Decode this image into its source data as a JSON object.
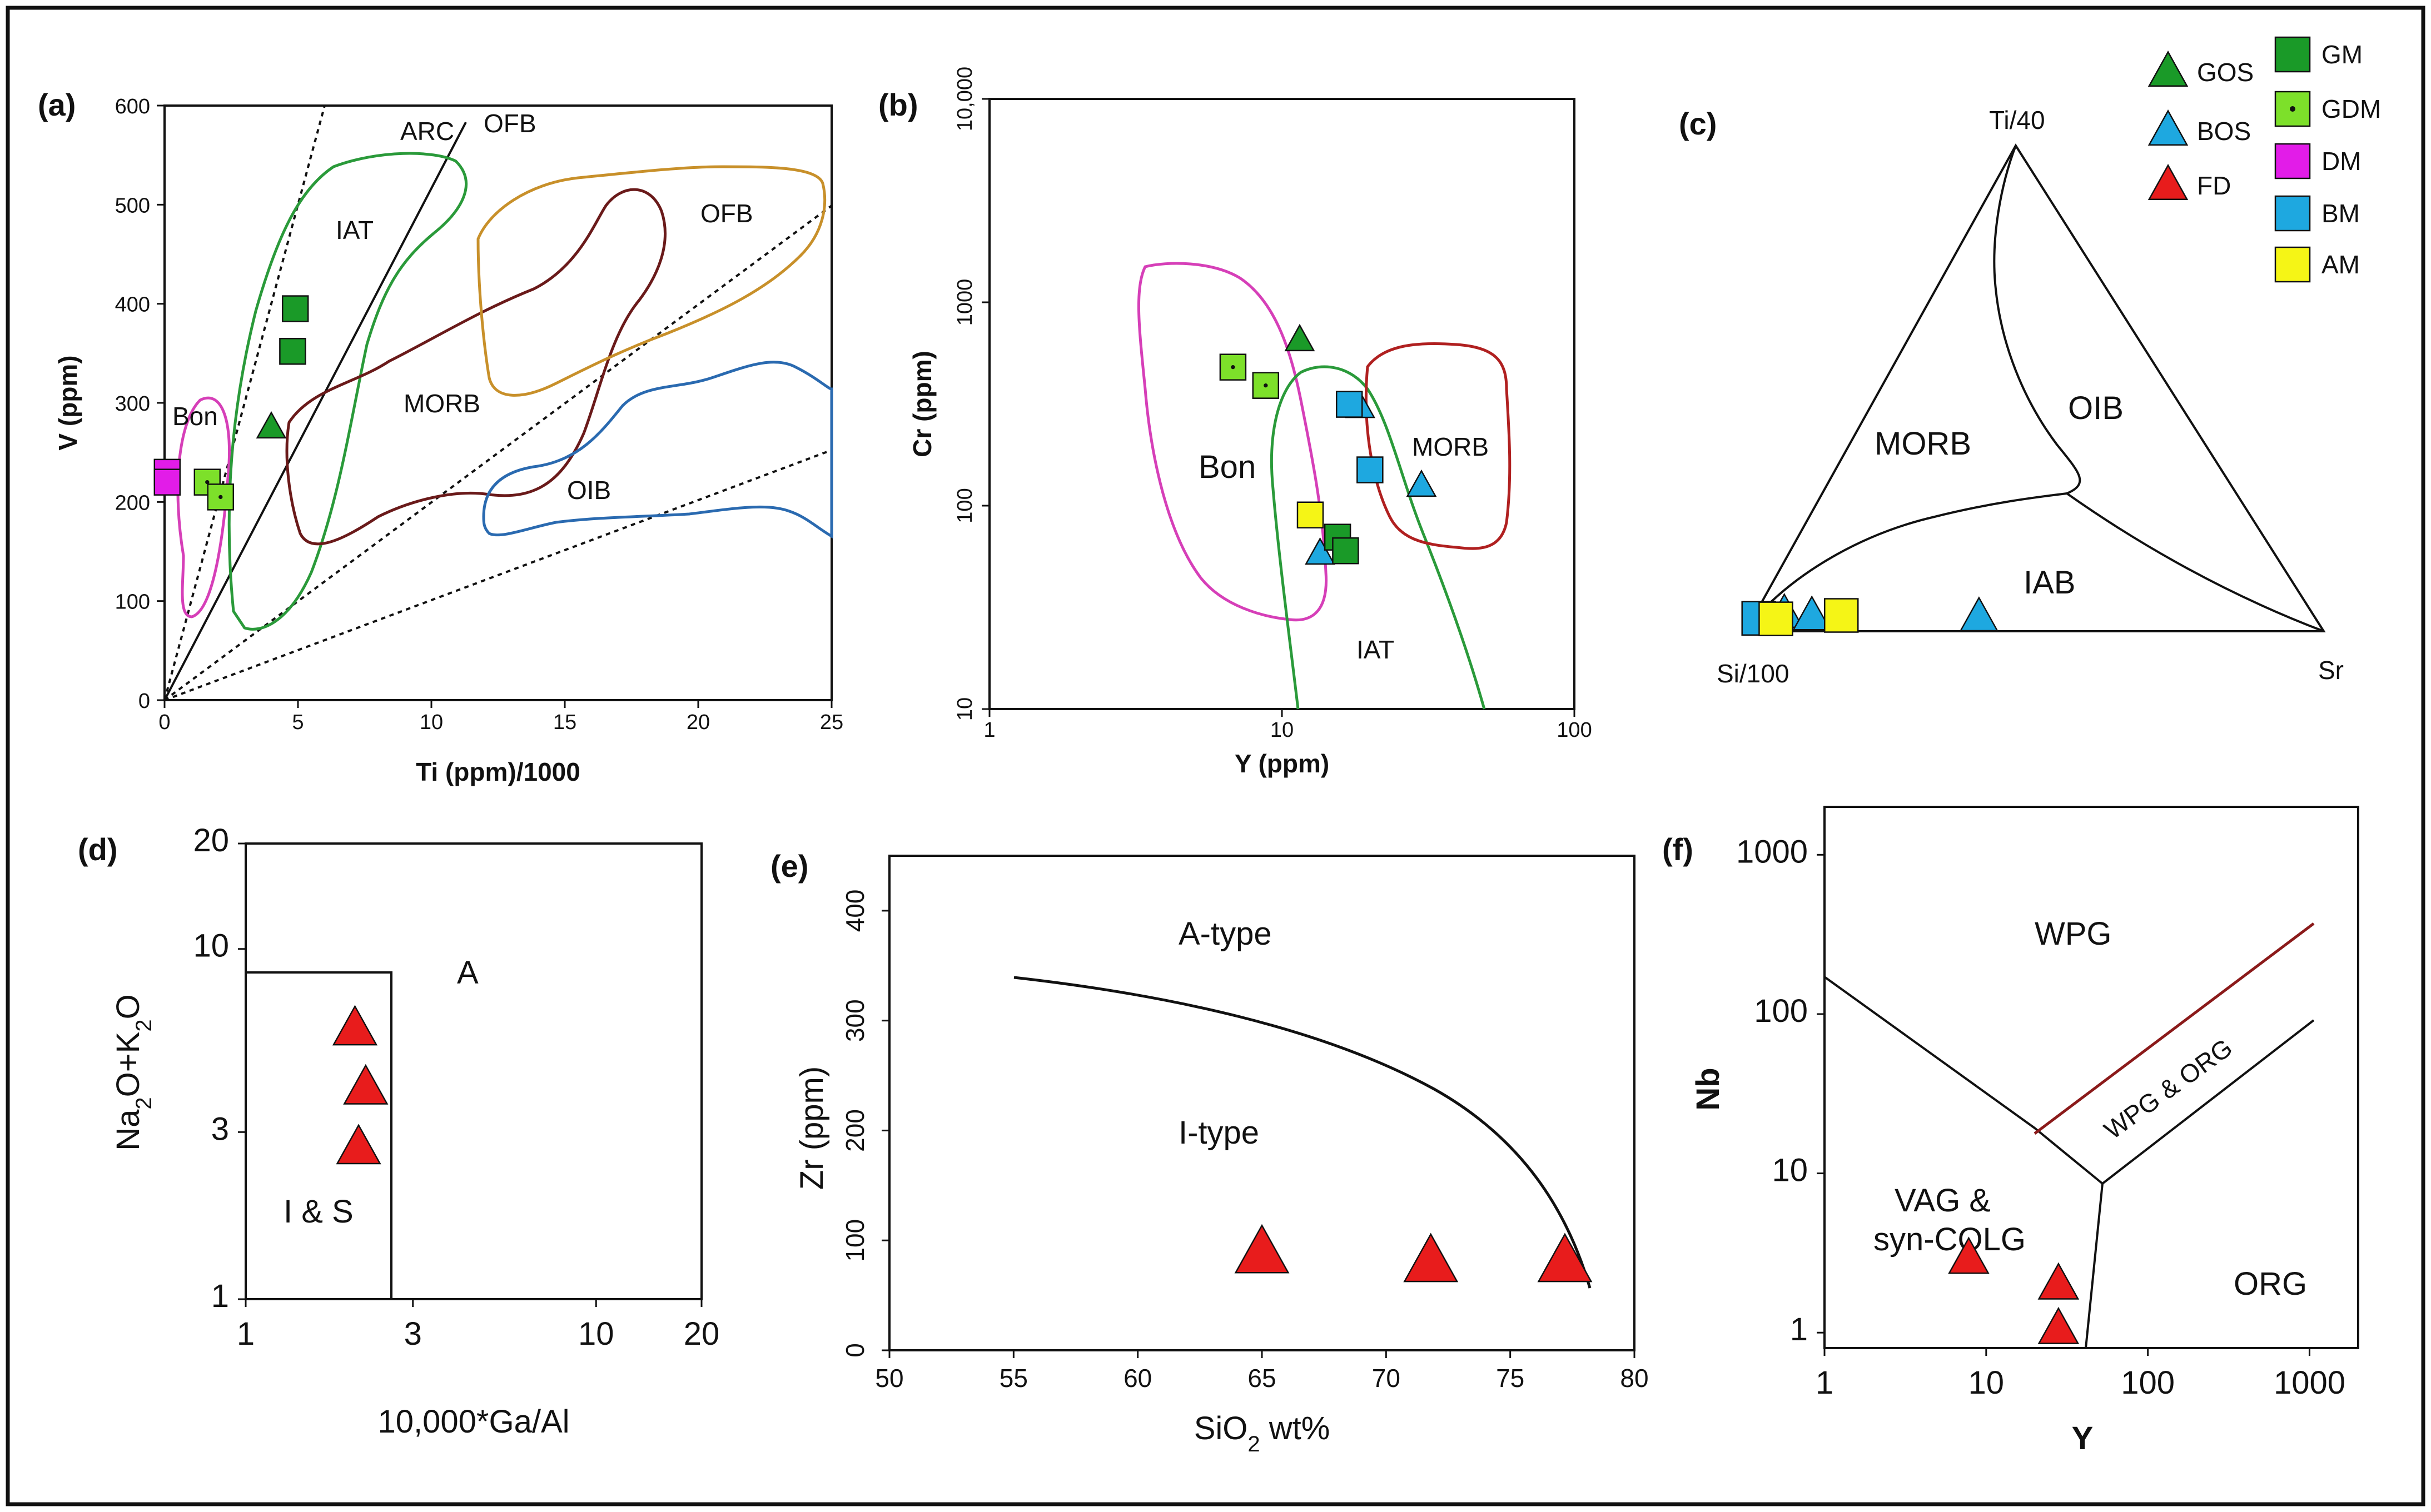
{
  "legend": {
    "items": [
      {
        "label": "GOS",
        "shape": "triangle",
        "color": "#1a9a28"
      },
      {
        "label": "BOS",
        "shape": "triangle",
        "color": "#1ea8e0"
      },
      {
        "label": "FD",
        "shape": "triangle",
        "color": "#e81c1c"
      },
      {
        "label": "GM",
        "shape": "square",
        "color": "#1a9a28"
      },
      {
        "label": "GDM",
        "shape": "square-dot",
        "color": "#7de02a"
      },
      {
        "label": "DM",
        "shape": "square",
        "color": "#e21ce8"
      },
      {
        "label": "BM",
        "shape": "square",
        "color": "#1ea8e0"
      },
      {
        "label": "AM",
        "shape": "square",
        "color": "#f5f516"
      }
    ]
  },
  "colors": {
    "GOS": "#1a9a28",
    "BOS": "#1ea8e0",
    "FD": "#e81c1c",
    "GM": "#1a9a28",
    "GDM": "#7de02a",
    "DM": "#e21ce8",
    "BM": "#1ea8e0",
    "AM": "#f5f516",
    "bon_field": "#d63fb8",
    "iat_field": "#2a9a3a",
    "morb_field": "#6a1a1a",
    "ofb_field": "#c8902a",
    "oib_field": "#2a6ab0",
    "morb_b_field": "#b02020",
    "wpg_orb_line": "#8b1a1a"
  },
  "chart_data": [
    {
      "panel": "(a)",
      "type": "scatter",
      "title": "",
      "xlabel": "Ti (ppm)/1000",
      "ylabel": "V (ppm)",
      "xlim": [
        0,
        25
      ],
      "ylim": [
        0,
        600
      ],
      "xticks": [
        "0",
        "5",
        "10",
        "15",
        "20",
        "25"
      ],
      "yticks": [
        "0",
        "100",
        "200",
        "300",
        "400",
        "500",
        "600"
      ],
      "field_labels": [
        "ARC",
        "OFB",
        "IAT",
        "OFB",
        "MORB",
        "Bon",
        "OIB"
      ],
      "series": [
        {
          "name": "GM",
          "points": [
            [
              4.9,
              395
            ],
            [
              4.8,
              352
            ]
          ]
        },
        {
          "name": "GOS",
          "points": [
            [
              4.0,
              275
            ]
          ]
        },
        {
          "name": "GDM",
          "points": [
            [
              1.6,
              220
            ],
            [
              2.1,
              205
            ]
          ]
        },
        {
          "name": "DM",
          "points": [
            [
              0.1,
              230
            ],
            [
              0.1,
              220
            ]
          ]
        }
      ]
    },
    {
      "panel": "(b)",
      "type": "scatter",
      "title": "",
      "xlabel": "Y (ppm)",
      "ylabel": "Cr (ppm)",
      "xscale": "log",
      "yscale": "log",
      "xlim": [
        1,
        100
      ],
      "ylim": [
        10,
        10000
      ],
      "xticks": [
        "1",
        "10",
        "100"
      ],
      "yticks": [
        "10",
        "100",
        "1000",
        "10,000"
      ],
      "field_labels": [
        "Bon",
        "MORB",
        "IAT"
      ],
      "series": [
        {
          "name": "GOS",
          "points": [
            [
              11.5,
              650
            ]
          ]
        },
        {
          "name": "GDM",
          "points": [
            [
              6.8,
              480
            ],
            [
              8.8,
              390
            ]
          ]
        },
        {
          "name": "BOS",
          "points": [
            [
              18.5,
              305
            ],
            [
              30,
              125
            ],
            [
              13.5,
              58
            ]
          ]
        },
        {
          "name": "BM",
          "points": [
            [
              17,
              315
            ],
            [
              20,
              150
            ]
          ]
        },
        {
          "name": "AM",
          "points": [
            [
              12.5,
              90
            ]
          ]
        },
        {
          "name": "GM",
          "points": [
            [
              15.5,
              70
            ],
            [
              16.5,
              60
            ]
          ]
        }
      ]
    },
    {
      "panel": "(c)",
      "type": "scatter",
      "title": "",
      "ternary_axes": [
        "Ti/40",
        "Si/100",
        "Sr"
      ],
      "field_labels": [
        "MORB",
        "OIB",
        "IAB"
      ],
      "series": [
        {
          "name": "BOS",
          "points": [
            [
              0.06,
              0.015
            ],
            [
              0.11,
              0.01
            ],
            [
              0.4,
              0.008
            ]
          ]
        },
        {
          "name": "BM",
          "points": [
            [
              0.02,
              0.006
            ]
          ]
        },
        {
          "name": "AM",
          "points": [
            [
              0.05,
              0.005
            ],
            [
              0.16,
              0.012
            ]
          ]
        }
      ]
    },
    {
      "panel": "(d)",
      "type": "scatter",
      "title": "",
      "xlabel": "10,000*Ga/Al",
      "ylabel": "Na2O+K2O",
      "xscale": "log",
      "yscale": "log",
      "xlim": [
        1,
        20
      ],
      "ylim": [
        1,
        20
      ],
      "xticks": [
        "1",
        "3",
        "10",
        "20"
      ],
      "yticks": [
        "1",
        "3",
        "10",
        "20"
      ],
      "field_labels": [
        "A",
        "I & S"
      ],
      "series": [
        {
          "name": "FD",
          "points": [
            [
              2.05,
              5.9
            ],
            [
              2.2,
              4.0
            ],
            [
              2.1,
              2.7
            ]
          ]
        }
      ]
    },
    {
      "panel": "(e)",
      "type": "scatter",
      "title": "",
      "xlabel": "SiO2 wt%",
      "ylabel": "Zr (ppm)",
      "xlim": [
        50,
        80
      ],
      "ylim": [
        0,
        450
      ],
      "xticks": [
        "50",
        "55",
        "60",
        "65",
        "70",
        "75",
        "80"
      ],
      "yticks": [
        "0",
        "100",
        "200",
        "300",
        "400"
      ],
      "field_labels": [
        "A-type",
        "I-type"
      ],
      "series": [
        {
          "name": "FD",
          "points": [
            [
              65,
              88
            ],
            [
              71.8,
              80
            ],
            [
              77.2,
              80
            ]
          ]
        }
      ]
    },
    {
      "panel": "(f)",
      "type": "scatter",
      "title": "",
      "xlabel": "Y",
      "ylabel": "Nb",
      "xscale": "log",
      "yscale": "log",
      "xlim": [
        1,
        2000
      ],
      "ylim": [
        0.8,
        2000
      ],
      "xticks": [
        "1",
        "10",
        "100",
        "1000"
      ],
      "yticks": [
        "1",
        "10",
        "100",
        "1000"
      ],
      "field_labels": [
        "WPG",
        "WPG & ORG",
        "VAG &",
        "syn-COLG",
        "ORG"
      ],
      "series": [
        {
          "name": "FD",
          "points": [
            [
              7.8,
              2.9
            ],
            [
              28,
              2.0
            ],
            [
              28,
              1.05
            ]
          ]
        }
      ]
    }
  ],
  "panels": {
    "a": {
      "letter": "(a)"
    },
    "b": {
      "letter": "(b)"
    },
    "c": {
      "letter": "(c)"
    },
    "d": {
      "letter": "(d)"
    },
    "e": {
      "letter": "(e)"
    },
    "f": {
      "letter": "(f)"
    }
  }
}
